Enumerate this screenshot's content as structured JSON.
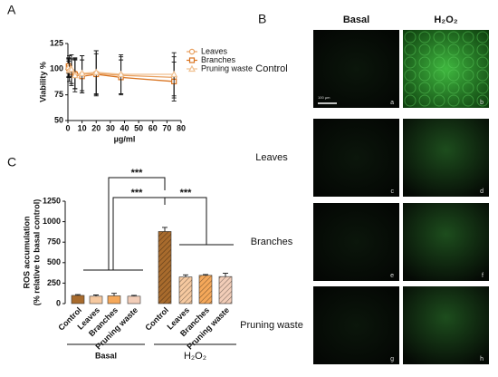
{
  "chart_data": [
    {
      "type": "line",
      "panel": "A",
      "xlabel": "µg/ml",
      "ylabel": "Viability %",
      "xlim": [
        0,
        80
      ],
      "xticks": [
        0,
        10,
        20,
        30,
        40,
        50,
        60,
        70,
        80
      ],
      "ylim": [
        50,
        125
      ],
      "yticks": [
        50,
        75,
        100,
        125
      ],
      "legend": "right",
      "x": [
        0.5,
        1,
        2.5,
        5,
        10,
        20,
        37.5,
        75
      ],
      "series": [
        {
          "name": "Leaves",
          "color": "#e8a060",
          "marker": "circle",
          "values": [
            100,
            103,
            98,
            96,
            95,
            96,
            94,
            92
          ],
          "errors": [
            8,
            10,
            12,
            15,
            18,
            22,
            18,
            20
          ]
        },
        {
          "name": "Branches",
          "color": "#d9731f",
          "marker": "square",
          "values": [
            103,
            101,
            97,
            95,
            93,
            95,
            92,
            88
          ],
          "errors": [
            7,
            9,
            13,
            14,
            16,
            20,
            17,
            19
          ]
        },
        {
          "name": "Pruning waste",
          "color": "#f0c090",
          "marker": "triangle",
          "values": [
            102,
            99,
            100,
            94,
            96,
            97,
            95,
            95
          ],
          "errors": [
            9,
            11,
            14,
            16,
            17,
            21,
            19,
            21
          ]
        }
      ]
    },
    {
      "type": "bar",
      "panel": "C",
      "ylabel": [
        "ROS accumulation",
        "(% relative to basal control)"
      ],
      "ylim": [
        0,
        1250
      ],
      "yticks": [
        0,
        250,
        500,
        750,
        1000,
        1250
      ],
      "categories": [
        "Control",
        "Leaves",
        "Branches",
        "Pruning waste"
      ],
      "colors": [
        "#a86b2d",
        "#f6c9a0",
        "#f5a85a",
        "#f2cdb8"
      ],
      "series": [
        {
          "name": "Basal",
          "values": [
            100,
            90,
            95,
            90
          ],
          "errors": [
            10,
            15,
            30,
            10
          ]
        },
        {
          "name": "H₂O₂",
          "values": [
            880,
            325,
            345,
            330
          ],
          "errors": [
            50,
            25,
            10,
            40
          ]
        }
      ],
      "annotations": [
        "***",
        "***",
        "***"
      ]
    }
  ],
  "micrographs": {
    "panel": "B",
    "columns": [
      "Basal",
      "H₂O₂"
    ],
    "rows": [
      "Control",
      "Leaves",
      "Branches",
      "Pruning waste"
    ],
    "letters": [
      "a",
      "b",
      "c",
      "d",
      "e",
      "f",
      "g",
      "h"
    ],
    "scale_bar": "100 µm"
  }
}
